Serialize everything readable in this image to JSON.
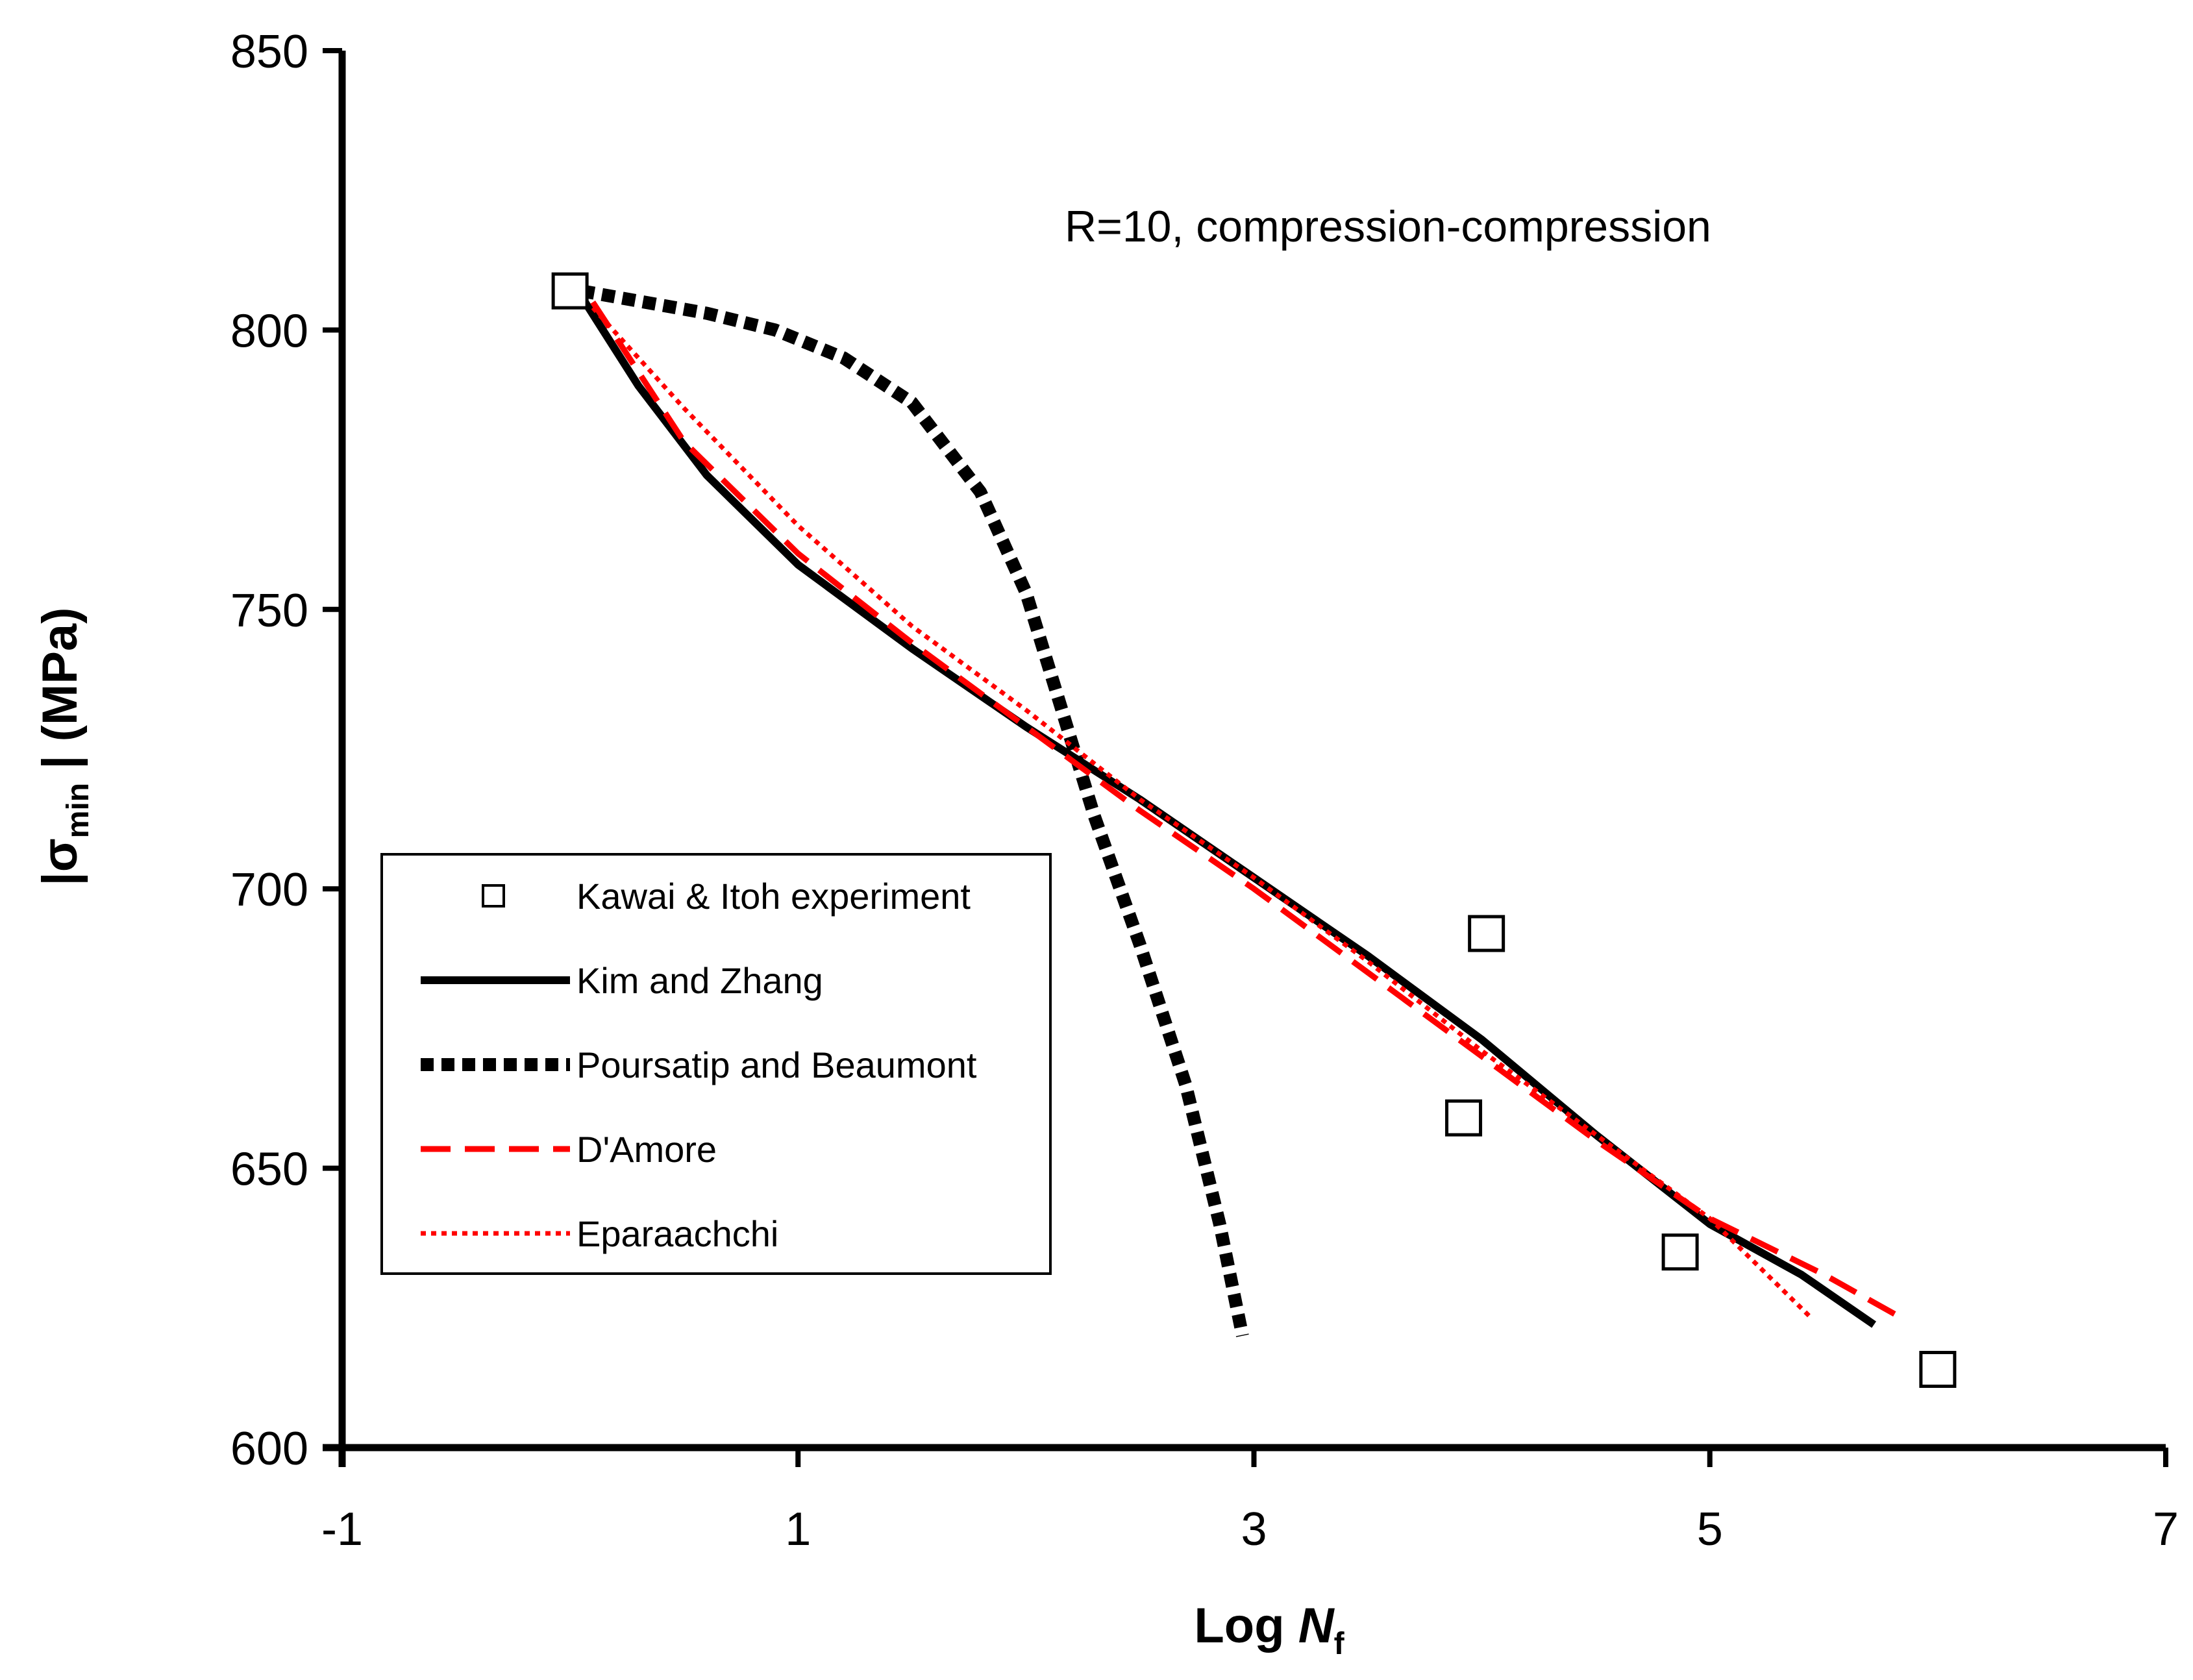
{
  "chart_data": {
    "type": "line",
    "title": "",
    "annotation": "R=10, compression-compression",
    "xlabel": {
      "main": "Log ",
      "variable": "N",
      "subscript": "f"
    },
    "ylabel": {
      "prefix": "|σ",
      "subscript": "min",
      "suffix": " | (MPa)"
    },
    "xlim": [
      -1,
      7
    ],
    "ylim": [
      600,
      850
    ],
    "xticks": [
      -1,
      1,
      3,
      5,
      7
    ],
    "yticks": [
      600,
      650,
      700,
      750,
      800,
      850
    ],
    "legend_position": "center-left",
    "series": [
      {
        "name": "Kawai & Itoh experiment",
        "style": "markers",
        "marker": "open-square",
        "color": "#000000",
        "points": [
          [
            0,
            807
          ],
          [
            4.02,
            692
          ],
          [
            3.92,
            659
          ],
          [
            4.87,
            635
          ],
          [
            6.0,
            614
          ]
        ]
      },
      {
        "name": "Kim and Zhang",
        "style": "solid",
        "color": "#000000",
        "points": [
          [
            0.05,
            806
          ],
          [
            0.3,
            790
          ],
          [
            0.6,
            774
          ],
          [
            1.0,
            758
          ],
          [
            1.5,
            743
          ],
          [
            2.0,
            729
          ],
          [
            2.5,
            716
          ],
          [
            3.0,
            702
          ],
          [
            3.5,
            688
          ],
          [
            4.0,
            673
          ],
          [
            4.5,
            656
          ],
          [
            5.0,
            640
          ],
          [
            5.4,
            631
          ],
          [
            5.72,
            622
          ]
        ]
      },
      {
        "name": "Poursatip and Beaumont",
        "style": "thick-dotted",
        "color": "#000000",
        "points": [
          [
            0.05,
            807
          ],
          [
            0.6,
            803
          ],
          [
            0.9,
            800
          ],
          [
            1.2,
            795
          ],
          [
            1.5,
            787
          ],
          [
            1.8,
            771
          ],
          [
            2.0,
            753
          ],
          [
            2.15,
            733
          ],
          [
            2.3,
            713
          ],
          [
            2.5,
            690
          ],
          [
            2.7,
            665
          ],
          [
            2.85,
            640
          ],
          [
            2.95,
            620
          ]
        ]
      },
      {
        "name": "D'Amore",
        "style": "dashed",
        "color": "#ff0000",
        "points": [
          [
            0.1,
            805
          ],
          [
            0.5,
            780
          ],
          [
            1.0,
            760
          ],
          [
            1.5,
            744
          ],
          [
            2.0,
            729
          ],
          [
            2.5,
            714
          ],
          [
            3.0,
            700
          ],
          [
            3.5,
            685
          ],
          [
            4.0,
            670
          ],
          [
            4.5,
            655
          ],
          [
            5.0,
            641
          ],
          [
            5.5,
            631
          ],
          [
            5.85,
            623
          ]
        ]
      },
      {
        "name": "Eparaachchi",
        "style": "dotted",
        "color": "#ff0000",
        "points": [
          [
            0.1,
            804
          ],
          [
            0.5,
            786
          ],
          [
            1.0,
            765
          ],
          [
            1.5,
            747
          ],
          [
            2.0,
            732
          ],
          [
            2.5,
            716
          ],
          [
            3.0,
            702
          ],
          [
            3.5,
            687
          ],
          [
            4.0,
            671
          ],
          [
            4.5,
            656
          ],
          [
            5.0,
            641
          ],
          [
            5.45,
            623
          ]
        ]
      }
    ]
  }
}
